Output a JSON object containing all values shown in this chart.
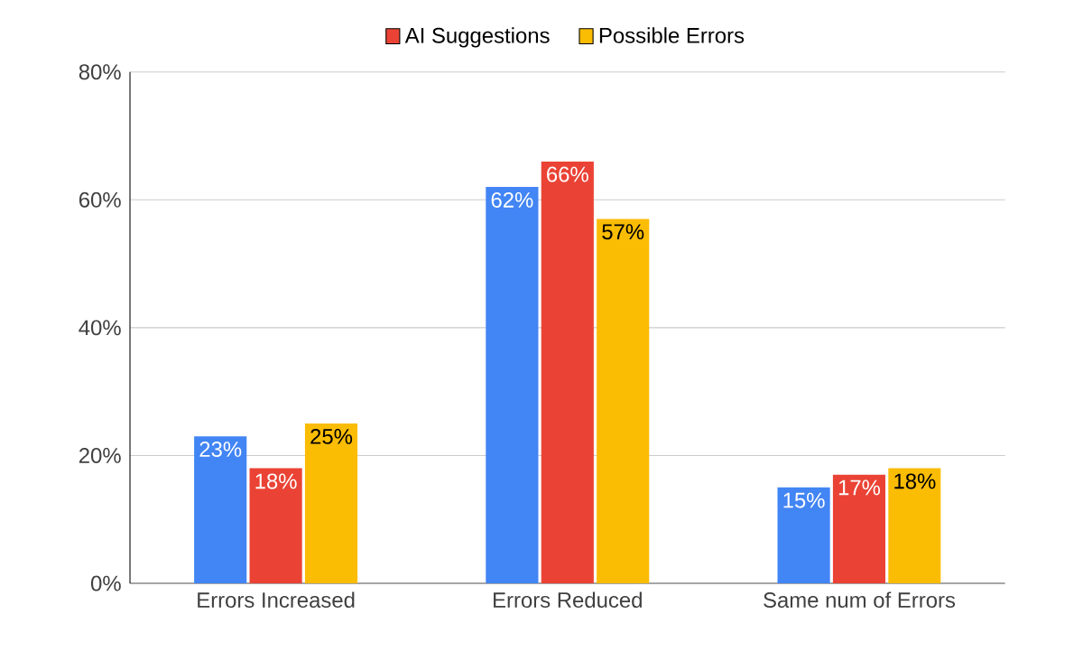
{
  "chart_data": {
    "type": "bar",
    "categories": [
      "Errors Increased",
      "Errors Reduced",
      "Same num of Errors"
    ],
    "series": [
      {
        "color": "#4285f4",
        "values": [
          23,
          62,
          15
        ],
        "value_labels": [
          "23%",
          "62%",
          "15%"
        ]
      },
      {
        "name": "AI Suggestions",
        "color": "#ea4335",
        "values": [
          18,
          66,
          17
        ],
        "value_labels": [
          "18%",
          "66%",
          "17%"
        ]
      },
      {
        "name": "Possible Errors",
        "color": "#fbbc04",
        "values": [
          25,
          57,
          18
        ],
        "value_labels": [
          "25%",
          "57%",
          "18%"
        ]
      }
    ],
    "ylim": [
      0,
      80
    ],
    "yticks": [
      {
        "value": 0,
        "label": "0%"
      },
      {
        "value": 20,
        "label": "20%"
      },
      {
        "value": 40,
        "label": "40%"
      },
      {
        "value": 60,
        "label": "60%"
      },
      {
        "value": 80,
        "label": "80%"
      }
    ],
    "grid": "y",
    "legend": "top"
  }
}
